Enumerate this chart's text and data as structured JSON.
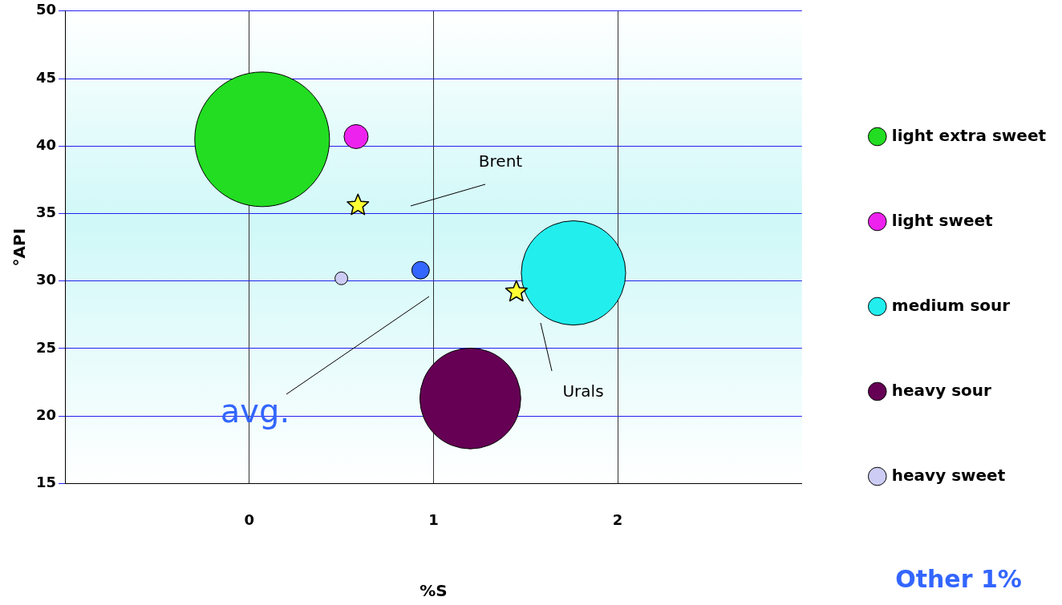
{
  "chart_data": {
    "type": "bubble",
    "xlabel": "%S",
    "ylabel": "°API",
    "xlim": [
      -1,
      3
    ],
    "xticks": [
      0,
      1,
      2
    ],
    "ylim": [
      15,
      50
    ],
    "yticks": [
      15,
      20,
      25,
      30,
      35,
      40,
      45,
      50
    ],
    "grid": true,
    "legend": "right",
    "series": [
      {
        "name": "light extra sweet",
        "color": "#22dd22",
        "x": [
          0.07
        ],
        "values": [
          40.5
        ],
        "sizes": [
          1
        ]
      },
      {
        "name": "light sweet",
        "color": "#ee22ee",
        "x": [
          0.58
        ],
        "values": [
          40.7
        ],
        "sizes": [
          0.032
        ]
      },
      {
        "name": "medium sour",
        "color": "#22eeee",
        "x": [
          1.76
        ],
        "values": [
          30.6
        ],
        "sizes": [
          0.6
        ]
      },
      {
        "name": "heavy sour",
        "color": "#660055",
        "x": [
          1.2
        ],
        "values": [
          21.3
        ],
        "sizes": [
          0.56
        ]
      },
      {
        "name": "heavy sweet",
        "color": "#ccccf4",
        "x": [
          0.5
        ],
        "values": [
          30.2
        ],
        "sizes": [
          0.009
        ]
      },
      {
        "color": "#3366ff",
        "x": [
          0.93
        ],
        "values": [
          30.8
        ],
        "sizes": [
          0.017
        ]
      },
      {
        "type": "scatter",
        "marker": "star",
        "color": "#ffff33",
        "x": [
          0.59,
          1.45
        ],
        "values": [
          35.6,
          29.2
        ]
      }
    ],
    "annotations": [
      "Brent",
      "Urals",
      "avg.",
      "Other 1%"
    ]
  }
}
